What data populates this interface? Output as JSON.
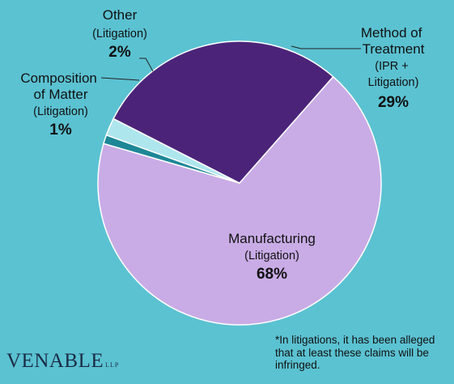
{
  "chart_data": {
    "type": "pie",
    "slices": [
      {
        "label": "Method of Treatment",
        "sub": "(IPR + Litigation)",
        "percent_label": "29%",
        "value": 29,
        "color": "#4b2479"
      },
      {
        "label": "Manufacturing",
        "sub": "(Litigation)",
        "percent_label": "68%",
        "value": 68,
        "color": "#c9ace6"
      },
      {
        "label": "Composition of Matter",
        "sub": "(Litigation)",
        "percent_label": "1%",
        "value": 1,
        "color": "#1e8797"
      },
      {
        "label": "Other",
        "sub": "(Litigation)",
        "percent_label": "2%",
        "value": 2,
        "color": "#aee6ee"
      }
    ],
    "footnote": "*In litigations, it has been alleged that at least these claims will be infringed."
  },
  "logo": {
    "main": "VENABLE",
    "suffix": "LLP"
  }
}
